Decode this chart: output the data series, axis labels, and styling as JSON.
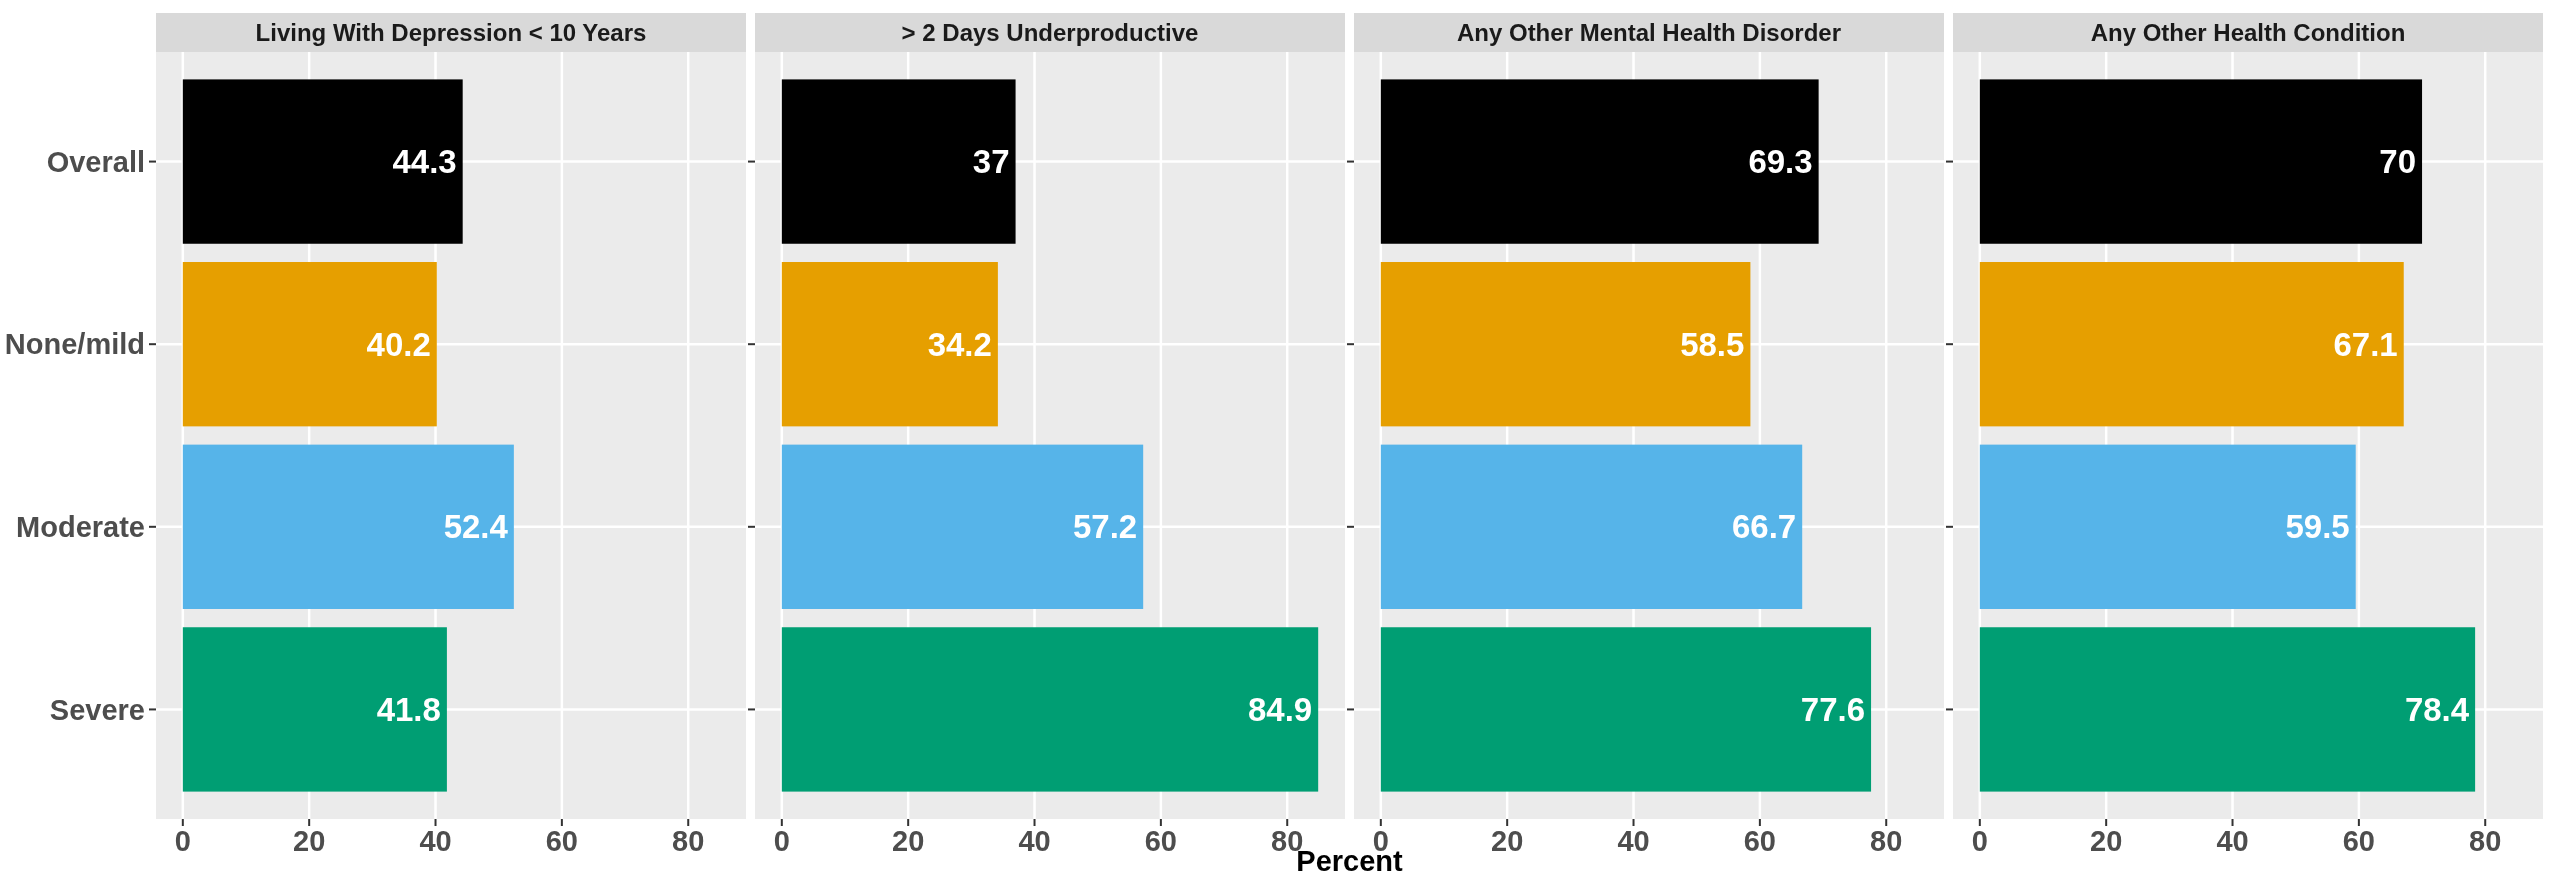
{
  "chart_data": [
    {
      "type": "bar",
      "orientation": "horizontal",
      "title": "Living With Depression < 10 Years",
      "categories": [
        "Overall",
        "None/mild",
        "Moderate",
        "Severe"
      ],
      "values": [
        44.3,
        40.2,
        52.4,
        41.8
      ],
      "colors": [
        "#000000",
        "#e69f00",
        "#56b4e9",
        "#009e73"
      ],
      "xlim": [
        -4.245,
        89.145
      ],
      "xticks": [
        0,
        20,
        40,
        60,
        80
      ],
      "data_labels": true,
      "grid": true
    },
    {
      "type": "bar",
      "orientation": "horizontal",
      "title": "> 2 Days Underproductive",
      "xlabel": "Percent",
      "categories": [
        "Overall",
        "None/mild",
        "Moderate",
        "Severe"
      ],
      "values": [
        37,
        34.2,
        57.2,
        84.9
      ],
      "colors": [
        "#000000",
        "#e69f00",
        "#56b4e9",
        "#009e73"
      ],
      "xlim": [
        -4.245,
        89.145
      ],
      "xticks": [
        0,
        20,
        40,
        60,
        80
      ],
      "data_labels": true,
      "grid": true,
      "tick_labels": "x"
    },
    {
      "type": "bar",
      "orientation": "horizontal",
      "title": "Any Other Mental Health Disorder",
      "categories": [
        "Overall",
        "None/mild",
        "Moderate",
        "Severe"
      ],
      "values": [
        69.3,
        58.5,
        66.7,
        77.6
      ],
      "colors": [
        "#000000",
        "#e69f00",
        "#56b4e9",
        "#009e73"
      ],
      "xlim": [
        -4.245,
        89.145
      ],
      "xticks": [
        0,
        20,
        40,
        60,
        80
      ],
      "data_labels": true,
      "grid": true,
      "tick_labels": "x"
    },
    {
      "type": "bar",
      "orientation": "horizontal",
      "title": "Any Other Health Condition",
      "categories": [
        "Overall",
        "None/mild",
        "Moderate",
        "Severe"
      ],
      "values": [
        70,
        67.1,
        59.5,
        78.4
      ],
      "colors": [
        "#000000",
        "#e69f00",
        "#56b4e9",
        "#009e73"
      ],
      "xlim": [
        -4.245,
        89.145
      ],
      "xticks": [
        0,
        20,
        40,
        60,
        80
      ],
      "data_labels": true,
      "grid": true,
      "tick_labels": "x"
    }
  ]
}
